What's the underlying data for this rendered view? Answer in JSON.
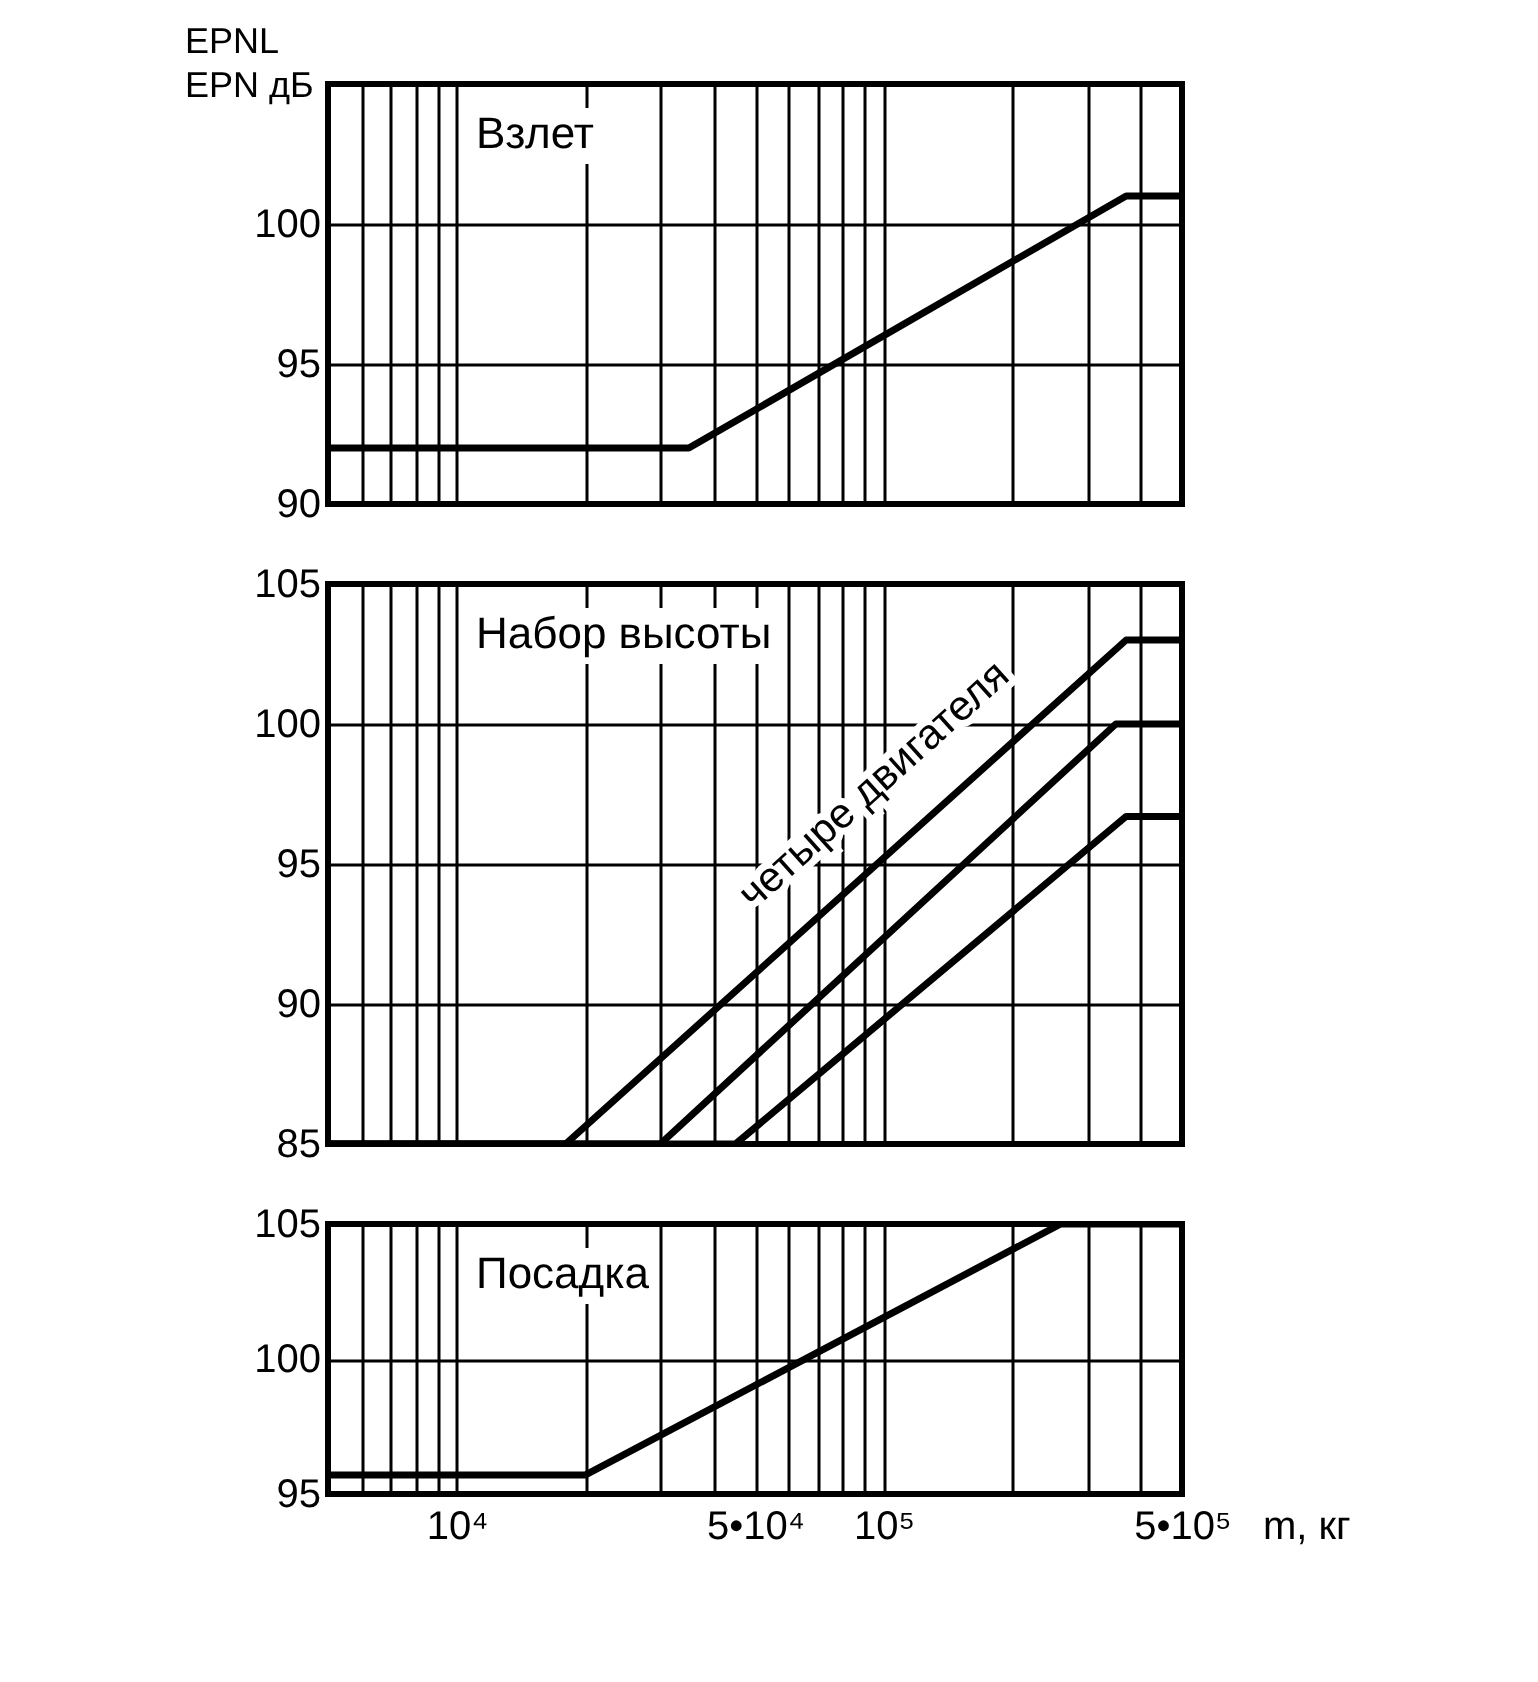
{
  "chart_data": [
    {
      "type": "line",
      "title": "Взлет",
      "ylabel": "EPNL\nEPN дБ",
      "xlim": [
        5000,
        500000
      ],
      "log": "x",
      "grid": true,
      "tick_labels": "y",
      "xticks": [
        {
          "value": 6000,
          "label": null
        },
        {
          "value": 7000,
          "label": null
        },
        {
          "value": 8000,
          "label": null
        },
        {
          "value": 9000,
          "label": null
        },
        {
          "value": 10000,
          "label": null
        },
        {
          "value": 20000,
          "label": null
        },
        {
          "value": 30000,
          "label": null
        },
        {
          "value": 40000,
          "label": null
        },
        {
          "value": 50000,
          "label": null
        },
        {
          "value": 60000,
          "label": null
        },
        {
          "value": 70000,
          "label": null
        },
        {
          "value": 80000,
          "label": null
        },
        {
          "value": 90000,
          "label": null
        },
        {
          "value": 100000,
          "label": null
        },
        {
          "value": 200000,
          "label": null
        },
        {
          "value": 300000,
          "label": null
        },
        {
          "value": 400000,
          "label": null
        },
        {
          "value": 500000,
          "label": null
        }
      ],
      "ylim": [
        90,
        105
      ],
      "yticks": [
        90,
        95,
        100
      ],
      "series": [
        {
          "color": "#000000",
          "x": [
            5000,
            35000,
            370000,
            500000
          ],
          "values": [
            92,
            92,
            101,
            101
          ]
        }
      ]
    },
    {
      "type": "line",
      "title": "Набор высоты",
      "xlim": [
        5000,
        500000
      ],
      "log": "x",
      "grid": true,
      "tick_labels": "y",
      "xticks": [
        {
          "value": 6000,
          "label": null
        },
        {
          "value": 7000,
          "label": null
        },
        {
          "value": 8000,
          "label": null
        },
        {
          "value": 9000,
          "label": null
        },
        {
          "value": 10000,
          "label": null
        },
        {
          "value": 20000,
          "label": null
        },
        {
          "value": 30000,
          "label": null
        },
        {
          "value": 40000,
          "label": null
        },
        {
          "value": 50000,
          "label": null
        },
        {
          "value": 60000,
          "label": null
        },
        {
          "value": 70000,
          "label": null
        },
        {
          "value": 80000,
          "label": null
        },
        {
          "value": 90000,
          "label": null
        },
        {
          "value": 100000,
          "label": null
        },
        {
          "value": 200000,
          "label": null
        },
        {
          "value": 300000,
          "label": null
        },
        {
          "value": 400000,
          "label": null
        },
        {
          "value": 500000,
          "label": null
        }
      ],
      "ylim": [
        85,
        105
      ],
      "yticks": [
        85,
        90,
        95,
        100,
        105
      ],
      "annotations": [
        "четыре двигателя"
      ],
      "series": [
        {
          "color": "#000000",
          "x": [
            5000,
            18000,
            370000,
            500000
          ],
          "values": [
            85,
            85,
            103,
            103
          ]
        },
        {
          "color": "#000000",
          "x": [
            5000,
            30000,
            350000,
            500000
          ],
          "values": [
            85,
            85,
            100,
            100
          ]
        },
        {
          "color": "#000000",
          "x": [
            5000,
            45000,
            370000,
            500000
          ],
          "values": [
            85,
            85,
            96.7,
            96.7
          ]
        }
      ]
    },
    {
      "type": "line",
      "title": "Посадка",
      "xlabel": "m, кг",
      "xlim": [
        5000,
        500000
      ],
      "log": "x",
      "grid": true,
      "xticks": [
        {
          "value": 6000,
          "label": null
        },
        {
          "value": 7000,
          "label": null
        },
        {
          "value": 8000,
          "label": null
        },
        {
          "value": 9000,
          "label": null
        },
        {
          "value": 10000,
          "label": "10⁴"
        },
        {
          "value": 20000,
          "label": null
        },
        {
          "value": 30000,
          "label": null
        },
        {
          "value": 40000,
          "label": null
        },
        {
          "value": 50000,
          "label": "5•10⁴"
        },
        {
          "value": 60000,
          "label": null
        },
        {
          "value": 70000,
          "label": null
        },
        {
          "value": 80000,
          "label": null
        },
        {
          "value": 90000,
          "label": null
        },
        {
          "value": 100000,
          "label": "10⁵"
        },
        {
          "value": 200000,
          "label": null
        },
        {
          "value": 300000,
          "label": null
        },
        {
          "value": 400000,
          "label": null
        },
        {
          "value": 500000,
          "label": "5•10⁵"
        }
      ],
      "ylim": [
        95,
        105
      ],
      "yticks": [
        95,
        100,
        105
      ],
      "series": [
        {
          "color": "#000000",
          "x": [
            5000,
            20000,
            260000,
            500000
          ],
          "values": [
            95.7,
            95.7,
            105,
            105
          ]
        }
      ]
    }
  ]
}
